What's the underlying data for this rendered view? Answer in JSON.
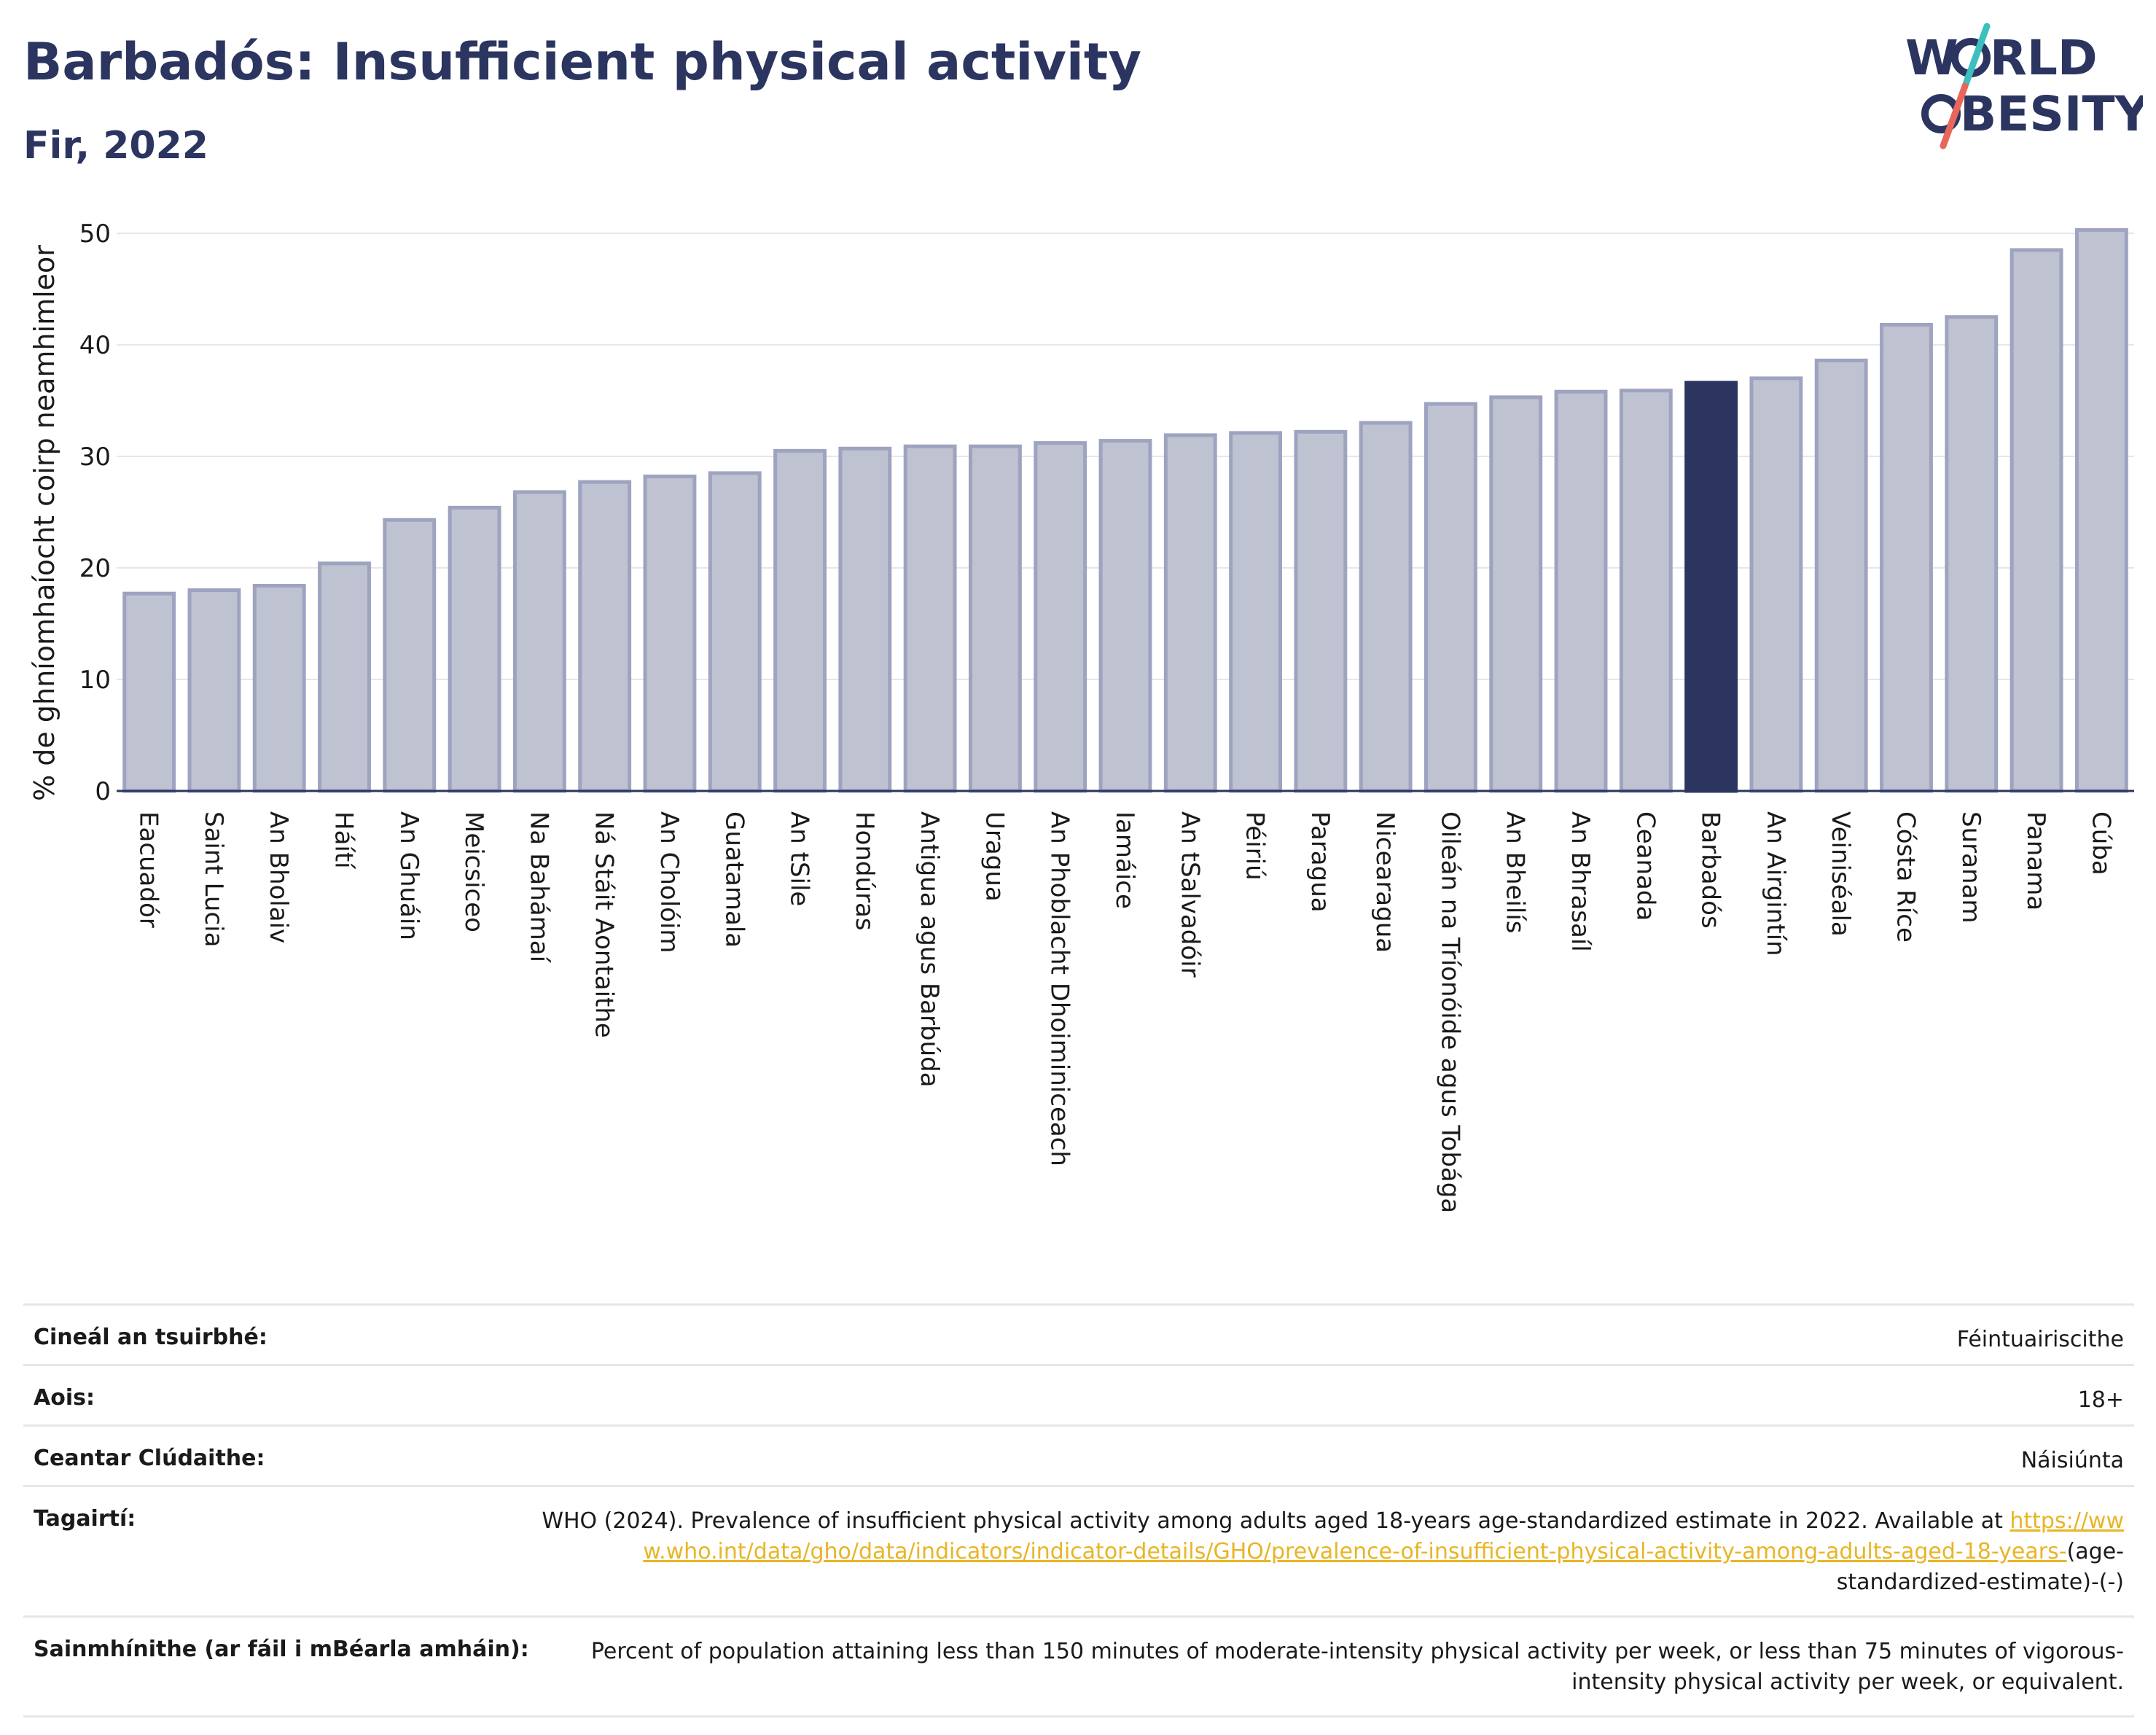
{
  "header": {
    "title": "Barbadós: Insufficient physical activity",
    "subtitle": "Fir, 2022"
  },
  "logo": {
    "line1_left": "W",
    "line1_right": "RLD",
    "line2_right": "BESITY",
    "colors": {
      "navy": "#2b3560",
      "teal": "#3dbfbf",
      "coral": "#e8675a"
    }
  },
  "colors": {
    "bar_fill": "#bfc2d1",
    "bar_stroke": "#9ea3bf",
    "highlight": "#2b3560",
    "grid": "#e6e6ec",
    "axis": "#2b3560"
  },
  "chart_data": {
    "type": "bar",
    "ylabel": "% de ghníomhaíocht coirp neamhimleor",
    "ylim": [
      0,
      52
    ],
    "yticks": [
      0,
      10,
      20,
      30,
      40,
      50
    ],
    "highlight": "Barbadós",
    "grid": true,
    "categories": [
      "Eacuadór",
      "Saint Lucia",
      "An Bholaiv",
      "Háítí",
      "An Ghuáin",
      "Meicsiceo",
      "Na Bahámaí",
      "Ná Stáit Aontaithe",
      "An Cholóim",
      "Guatamala",
      "An tSile",
      "Hondúras",
      "Antigua agus Barbúda",
      "Uragua",
      "An Phoblacht Dhoiminiceach",
      "Iamáice",
      "An tSalvadóir",
      "Péiriú",
      "Paragua",
      "Nicearagua",
      "Oileán na Tríonóide agus Tobága",
      "An Bheilís",
      "An Bhrasaíl",
      "Ceanada",
      "Barbadós",
      "An Airgintín",
      "Veiniséala",
      "Cósta Ríce",
      "Suranam",
      "Panama",
      "Cúba"
    ],
    "values": [
      17.7,
      18.0,
      18.4,
      20.4,
      24.3,
      25.4,
      26.8,
      27.7,
      28.2,
      28.5,
      30.5,
      30.7,
      30.9,
      30.9,
      31.2,
      31.4,
      31.9,
      32.1,
      32.2,
      33.0,
      34.7,
      35.3,
      35.8,
      35.9,
      36.6,
      37.0,
      38.6,
      41.8,
      42.5,
      48.5,
      50.3
    ]
  },
  "info_table": {
    "survey_type": {
      "label": "Cineál an tsuirbhé:",
      "value": "Féintuairiscithe"
    },
    "age": {
      "label": "Aois:",
      "value": "18+"
    },
    "coverage": {
      "label": "Ceantar Clúdaithe:",
      "value": "Náisiúnta"
    },
    "references": {
      "label": "Tagairtí:",
      "text": "WHO (2024). Prevalence of insufficient physical activity among adults aged 18-years age-standardized estimate in 2022. Available at",
      "link": "https://www.who.int/data/gho/data/indicators/indicator-details/GHO/prevalence-of-insufficient-physical-activity-among-adults-aged-18-years-",
      "suffix": "(age-standardized-estimate)-(-)"
    },
    "definitions": {
      "label": "Sainmhínithe (ar fáil i mBéarla amháin):",
      "value": "Percent of population attaining less than 150 minutes of moderate-intensity physical activity per week, or less than 75 minutes of vigorous-intensity physical activity per week, or equivalent."
    }
  }
}
